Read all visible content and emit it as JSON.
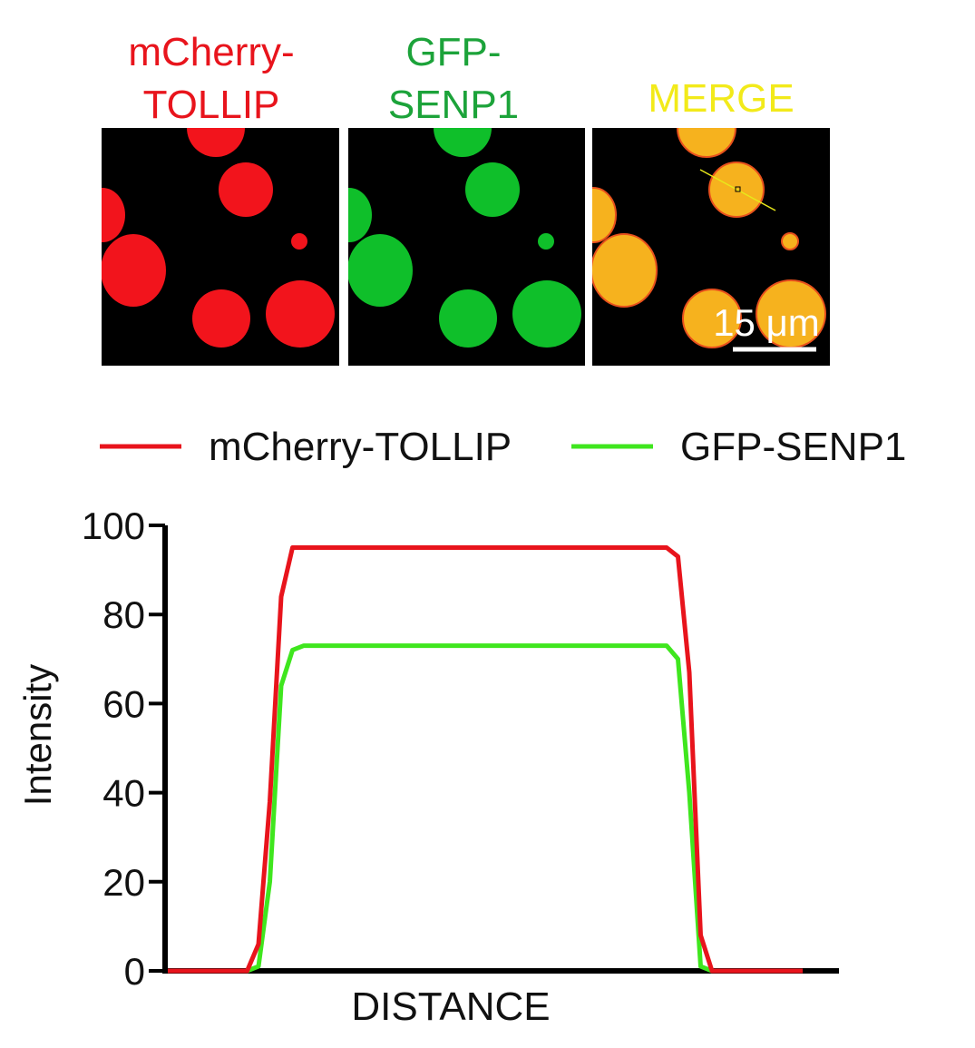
{
  "panels": [
    {
      "title_lines": [
        "mCherry-",
        "TOLLIP"
      ]
    },
    {
      "title_lines": [
        "GFP-",
        "SENP1"
      ]
    },
    {
      "title_lines": [
        "MERGE"
      ],
      "scale_bar": "15 μm"
    }
  ],
  "chart_data": {
    "type": "line",
    "ylabel": "Intensity",
    "xlabel": "DISTANCE",
    "ylim": [
      0,
      100
    ],
    "yticks": [
      0,
      20,
      40,
      60,
      80,
      100
    ],
    "legend": "top",
    "series": [
      {
        "name": "mCherry-TOLLIP",
        "color": "#e8141c",
        "values": [
          0,
          0,
          0,
          0,
          0,
          0,
          0,
          0,
          6,
          38,
          84,
          95,
          95,
          95,
          95,
          95,
          95,
          95,
          95,
          95,
          95,
          95,
          95,
          95,
          95,
          95,
          95,
          95,
          95,
          95,
          95,
          95,
          95,
          95,
          95,
          95,
          95,
          95,
          95,
          95,
          95,
          95,
          95,
          95,
          95,
          93,
          67,
          8,
          0,
          0,
          0,
          0,
          0,
          0,
          0,
          0,
          0
        ]
      },
      {
        "name": "GFP-SENP1",
        "color": "#3fe61e",
        "values": [
          0,
          0,
          0,
          0,
          0,
          0,
          0,
          0,
          1,
          20,
          64,
          72,
          73,
          73,
          73,
          73,
          73,
          73,
          73,
          73,
          73,
          73,
          73,
          73,
          73,
          73,
          73,
          73,
          73,
          73,
          73,
          73,
          73,
          73,
          73,
          73,
          73,
          73,
          73,
          73,
          73,
          73,
          73,
          73,
          73,
          70,
          40,
          1,
          0,
          0,
          0,
          0,
          0,
          0,
          0,
          0,
          0
        ]
      }
    ]
  }
}
